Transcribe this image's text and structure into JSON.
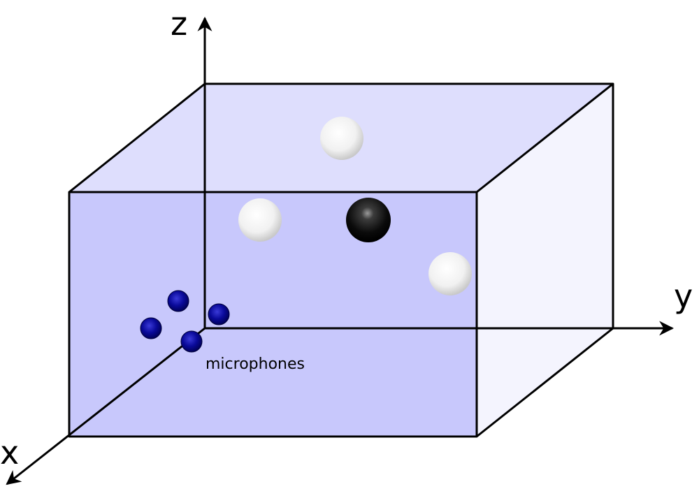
{
  "axes": {
    "x_label": "x",
    "y_label": "y",
    "z_label": "z"
  },
  "annotations": {
    "microphones_label": "microphones"
  },
  "objects": {
    "microphone_count": 4,
    "white_source_count": 3,
    "black_source_count": 1
  },
  "colors": {
    "front_face": "#c8c8fc",
    "top_face": "#dedefd",
    "side_face": "#f4f4fe",
    "microphone": "#00008b",
    "white_source": "#f2f2f2",
    "black_source": "#111111"
  }
}
